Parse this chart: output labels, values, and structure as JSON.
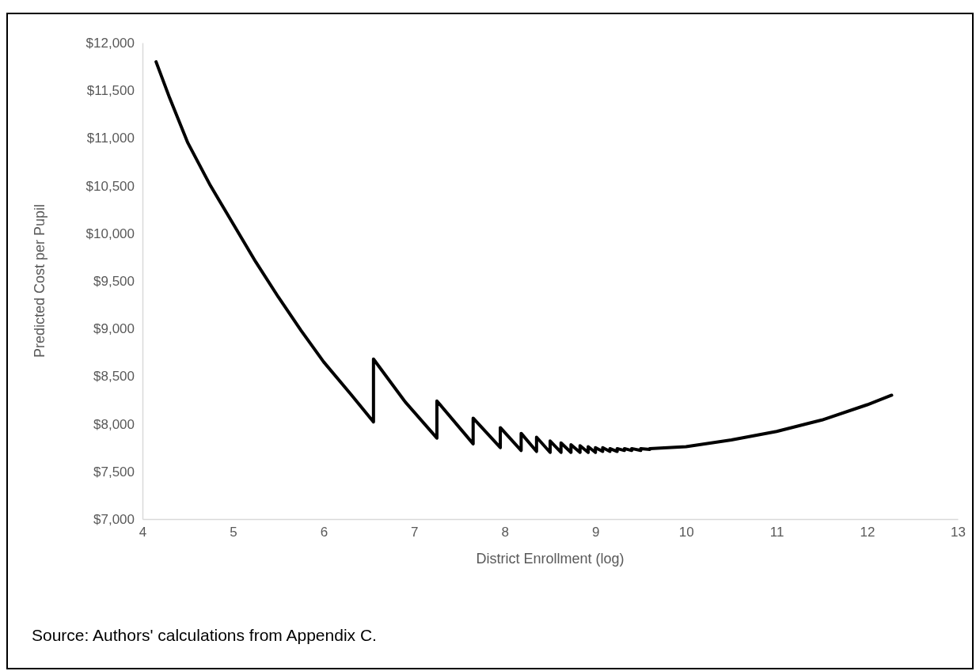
{
  "chart_data": {
    "type": "line",
    "xlabel": "District Enrollment (log)",
    "ylabel": "Predicted Cost per Pupil",
    "annotations": [
      "Source: Authors' calculations from Appendix C."
    ],
    "x": [
      4.15,
      4.3,
      4.5,
      4.75,
      5,
      5.25,
      5.5,
      5.75,
      6,
      6.3,
      6.55,
      6.55,
      6.9,
      7.25,
      7.25,
      7.65,
      7.65,
      7.95,
      7.95,
      8.18,
      8.18,
      8.35,
      8.35,
      8.5,
      8.5,
      8.62,
      8.62,
      8.73,
      8.73,
      8.83,
      8.83,
      8.92,
      8.92,
      9.0,
      9.0,
      9.08,
      9.08,
      9.16,
      9.16,
      9.24,
      9.24,
      9.32,
      9.32,
      9.4,
      9.4,
      9.5,
      9.5,
      9.6,
      9.6,
      10,
      10.5,
      11,
      11.5,
      12,
      12.27
    ],
    "series": [
      {
        "color": "#000000",
        "values": [
          11800,
          11420,
          10950,
          10500,
          10100,
          9700,
          9330,
          8980,
          8650,
          8310,
          8020,
          8680,
          8230,
          7850,
          8240,
          7790,
          8060,
          7750,
          7960,
          7720,
          7900,
          7710,
          7860,
          7700,
          7820,
          7700,
          7800,
          7700,
          7780,
          7700,
          7770,
          7700,
          7760,
          7700,
          7750,
          7710,
          7750,
          7710,
          7740,
          7710,
          7740,
          7720,
          7740,
          7720,
          7740,
          7720,
          7740,
          7730,
          7740,
          7760,
          7830,
          7920,
          8040,
          8200,
          8300
        ]
      }
    ],
    "xlim": [
      4,
      13
    ],
    "xticks": [
      4,
      5,
      6,
      7,
      8,
      9,
      10,
      11,
      12,
      13
    ],
    "ylim": [
      7000,
      12000
    ],
    "yticks": [
      {
        "value": 7000,
        "label": "$7,000"
      },
      {
        "value": 7500,
        "label": "$7,500"
      },
      {
        "value": 8000,
        "label": "$8,000"
      },
      {
        "value": 8500,
        "label": "$8,500"
      },
      {
        "value": 9000,
        "label": "$9,000"
      },
      {
        "value": 9500,
        "label": "$9,500"
      },
      {
        "value": 10000,
        "label": "$10,000"
      },
      {
        "value": 10500,
        "label": "$10,500"
      },
      {
        "value": 11000,
        "label": "$11,000"
      },
      {
        "value": 11500,
        "label": "$11,500"
      },
      {
        "value": 12000,
        "label": "$12,000"
      }
    ],
    "marker": "none",
    "line_style": "solid"
  }
}
